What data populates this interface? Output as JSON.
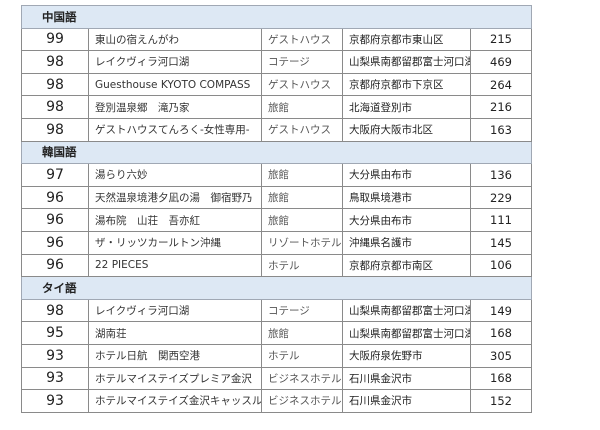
{
  "sections": [
    {
      "label": "中国語",
      "rows": [
        {
          "score": "99",
          "name": "東山の宿えんがわ",
          "type": "ゲストハウス",
          "location": "京都府京都市東山区",
          "count": "215"
        },
        {
          "score": "98",
          "name": "レイクヴィラ河口湖",
          "type": "コテージ",
          "location": "山梨県南都留郡富士河口湖町",
          "count": "469"
        },
        {
          "score": "98",
          "name": "Guesthouse KYOTO COMPASS",
          "type": "ゲストハウス",
          "location": "京都府京都市下京区",
          "count": "264"
        },
        {
          "score": "98",
          "name": "登別温泉郷　滝乃家",
          "type": "旅館",
          "location": "北海道登別市",
          "count": "216"
        },
        {
          "score": "98",
          "name": "ゲストハウスてんろく-女性専用-",
          "type": "ゲストハウス",
          "location": "大阪府大阪市北区",
          "count": "163"
        }
      ]
    },
    {
      "label": "韓国語",
      "rows": [
        {
          "score": "97",
          "name": "湯らり六妙",
          "type": "旅館",
          "location": "大分県由布市",
          "count": "136"
        },
        {
          "score": "96",
          "name": "天然温泉境港夕凪の湯　御宿野乃",
          "type": "旅館",
          "location": "鳥取県境港市",
          "count": "229"
        },
        {
          "score": "96",
          "name": "湯布院　山荘　吾亦紅",
          "type": "旅館",
          "location": "大分県由布市",
          "count": "111"
        },
        {
          "score": "96",
          "name": "ザ・リッツカールトン沖縄",
          "type": "リゾートホテル",
          "location": "沖縄県名護市",
          "count": "145"
        },
        {
          "score": "96",
          "name": "22 PIECES",
          "type": "ホテル",
          "location": "京都府京都市南区",
          "count": "106"
        }
      ]
    },
    {
      "label": "タイ語",
      "rows": [
        {
          "score": "98",
          "name": "レイクヴィラ河口湖",
          "type": "コテージ",
          "location": "山梨県南都留郡富士河口湖町",
          "count": "149"
        },
        {
          "score": "95",
          "name": "湖南荘",
          "type": "旅館",
          "location": "山梨県南都留郡富士河口湖町",
          "count": "168"
        },
        {
          "score": "93",
          "name": "ホテル日航　関西空港",
          "type": "ホテル",
          "location": "大阪府泉佐野市",
          "count": "305"
        },
        {
          "score": "93",
          "name": "ホテルマイステイズプレミア金沢",
          "type": "ビジネスホテル",
          "location": "石川県金沢市",
          "count": "168"
        },
        {
          "score": "93",
          "name": "ホテルマイステイズ金沢キャッスル",
          "type": "ビジネスホテル",
          "location": "石川県金沢市",
          "count": "152"
        }
      ]
    }
  ],
  "colors": {
    "section_header_bg": "#dde8f4",
    "border": "#8a8a8a"
  }
}
